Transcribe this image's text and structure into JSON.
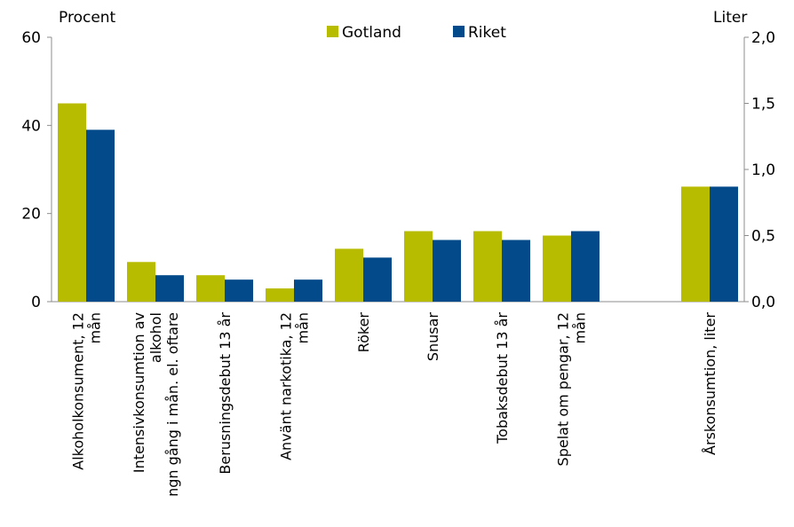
{
  "chart_data": {
    "type": "bar",
    "left_unit_label": "Procent",
    "right_unit_label": "Liter",
    "categories": [
      [
        "Alkoholkonsument, 12",
        "mån"
      ],
      [
        "Intensivkonsumtion av",
        "alkohol",
        "ngn gång i mån. el. oftare"
      ],
      [
        "Berusningsdebut 13 år"
      ],
      [
        "Använt narkotika, 12",
        "mån"
      ],
      [
        "Röker"
      ],
      [
        "Snusar"
      ],
      [
        "Tobaksdebut 13 år"
      ],
      [
        "Spelat om pengar, 12",
        "mån"
      ],
      [],
      [
        "Årskonsumtion, liter"
      ]
    ],
    "series": [
      {
        "name": "Gotland",
        "color": "#b8bc00",
        "values": [
          45,
          9,
          6,
          3,
          12,
          16,
          16,
          15,
          null,
          null
        ]
      },
      {
        "name": "Riket",
        "color": "#034a8a",
        "values": [
          39,
          6,
          5,
          5,
          10,
          14,
          14,
          16,
          null,
          null
        ]
      }
    ],
    "secondary_series": [
      {
        "name": "Gotland",
        "color": "#b8bc00",
        "values": [
          null,
          null,
          null,
          null,
          null,
          null,
          null,
          null,
          null,
          0.87
        ]
      },
      {
        "name": "Riket",
        "color": "#034a8a",
        "values": [
          null,
          null,
          null,
          null,
          null,
          null,
          null,
          null,
          null,
          0.87
        ]
      }
    ],
    "y_left": {
      "min": 0,
      "max": 60,
      "ticks": [
        "0",
        "20",
        "40",
        "60"
      ]
    },
    "y_right": {
      "min": 0,
      "max": 2,
      "ticks": [
        "0,0",
        "0,5",
        "1,0",
        "1,5",
        "2,0"
      ]
    },
    "legend": {
      "position": "top-center",
      "items": [
        "Gotland",
        "Riket"
      ]
    },
    "grid": false
  }
}
